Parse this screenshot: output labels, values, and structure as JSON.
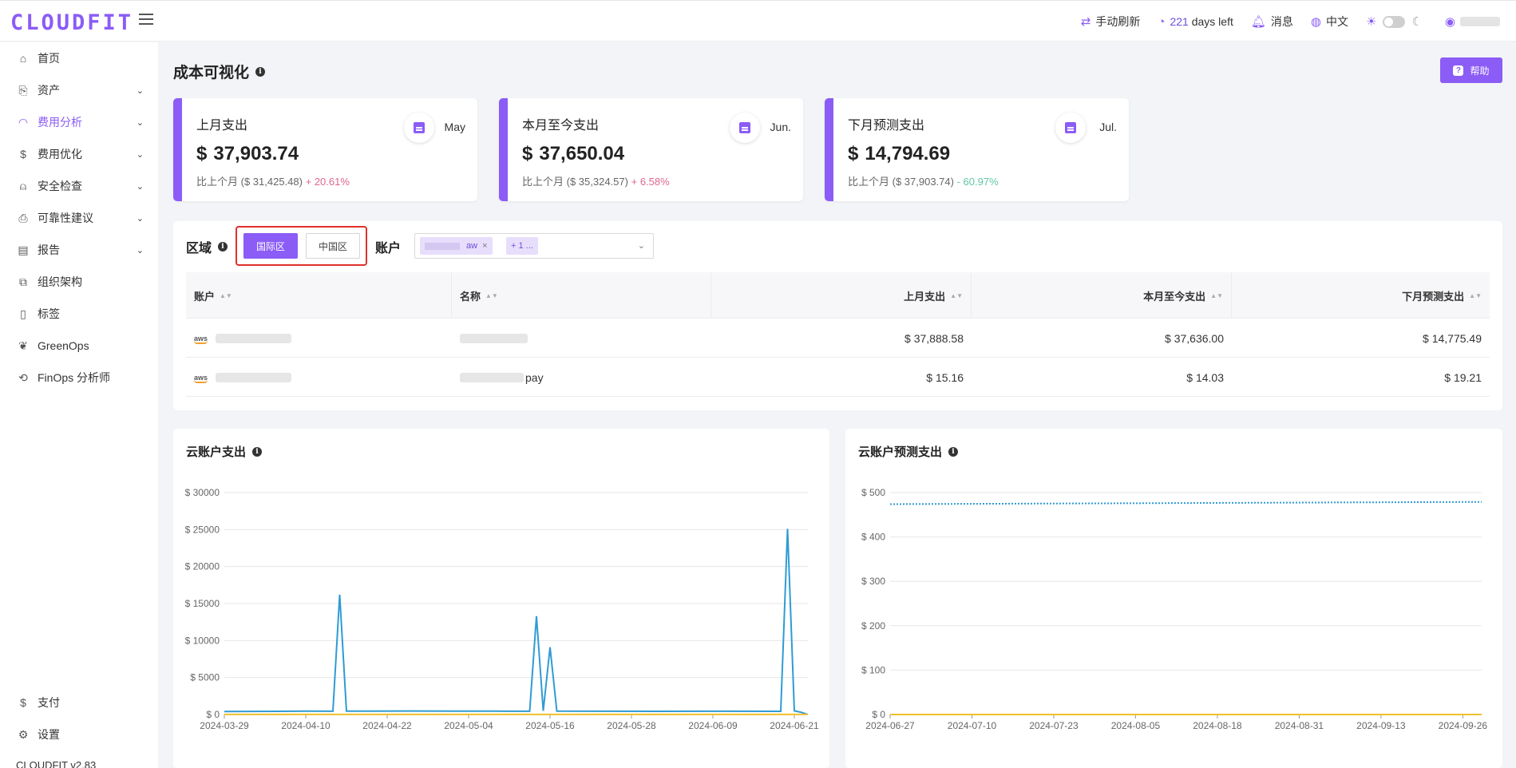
{
  "app": {
    "logo": "CLOUDFIT",
    "version": "CLOUDFIT v2.83"
  },
  "topbar": {
    "refresh_label": "手动刷新",
    "days_value": "221",
    "days_label": "days left",
    "messages_label": "消息",
    "language_label": "中文"
  },
  "sidebar": {
    "items": [
      {
        "label": "首页",
        "icon": "home-icon"
      },
      {
        "label": "资产",
        "icon": "asset-icon"
      },
      {
        "label": "费用分析",
        "icon": "dashboard-icon"
      },
      {
        "label": "费用优化",
        "icon": "dollar-icon"
      },
      {
        "label": "安全检查",
        "icon": "alarm-icon"
      },
      {
        "label": "可靠性建议",
        "icon": "doc-check-icon"
      },
      {
        "label": "报告",
        "icon": "report-icon"
      },
      {
        "label": "组织架构",
        "icon": "org-icon"
      },
      {
        "label": "标签",
        "icon": "tag-icon"
      },
      {
        "label": "GreenOps",
        "icon": "leaf-icon"
      },
      {
        "label": "FinOps 分析师",
        "icon": "analyst-icon"
      }
    ],
    "bottom": [
      {
        "label": "支付",
        "icon": "dollar-icon"
      },
      {
        "label": "设置",
        "icon": "gear-icon"
      }
    ]
  },
  "page": {
    "title": "成本可视化",
    "help_label": "帮助"
  },
  "cards": [
    {
      "label": "上月支出",
      "currency": "$",
      "amount": "37,903.74",
      "month": "May",
      "compare_prefix": "比上个月 (",
      "compare_amount": "$ 31,425.48",
      "compare_suffix": ")",
      "change": "+ 20.61%"
    },
    {
      "label": "本月至今支出",
      "currency": "$",
      "amount": "37,650.04",
      "month": "Jun.",
      "compare_prefix": "比上个月 (",
      "compare_amount": "$ 35,324.57",
      "compare_suffix": ")",
      "change": "+ 6.58%"
    },
    {
      "label": "下月预测支出",
      "currency": "$",
      "amount": "14,794.69",
      "month": "Jul.",
      "compare_prefix": "比上个月 (",
      "compare_amount": "$ 37,903.74",
      "compare_suffix": ")",
      "change": "- 60.97%"
    }
  ],
  "filters": {
    "region_label": "区域",
    "region_intl": "国际区",
    "region_cn": "中国区",
    "account_label": "账户",
    "account_tag_visible": "aw",
    "account_tag_more": "+ 1 ..."
  },
  "table": {
    "headers": [
      "账户",
      "名称",
      "上月支出",
      "本月至今支出",
      "下月预测支出"
    ],
    "rows": [
      {
        "provider": "aws",
        "last_month": "$ 37,888.58",
        "mtd": "$ 37,636.00",
        "forecast": "$ 14,775.49",
        "name_visible": ""
      },
      {
        "provider": "aws",
        "last_month": "$ 15.16",
        "mtd": "$ 14.03",
        "forecast": "$ 19.21",
        "name_visible": "pay"
      }
    ]
  },
  "charts": {
    "left_title": "云账户支出",
    "right_title": "云账户预测支出"
  },
  "chart_data": [
    {
      "type": "line",
      "title": "云账户支出",
      "ylim": [
        0,
        30000
      ],
      "y_ticks": [
        "$ 0",
        "$ 5000",
        "$ 10000",
        "$ 15000",
        "$ 20000",
        "$ 25000",
        "$ 30000"
      ],
      "x_ticks": [
        "2024-03-29",
        "2024-04-10",
        "2024-04-22",
        "2024-05-04",
        "2024-05-16",
        "2024-05-28",
        "2024-06-09",
        "2024-06-21"
      ],
      "x_range": [
        "2024-03-29",
        "2024-06-23"
      ],
      "series": [
        {
          "color": "#2f9bd4",
          "points": [
            [
              "2024-03-29",
              400
            ],
            [
              "2024-04-02",
              420
            ],
            [
              "2024-04-06",
              430
            ],
            [
              "2024-04-10",
              450
            ],
            [
              "2024-04-14",
              440
            ],
            [
              "2024-04-15",
              16200
            ],
            [
              "2024-04-16",
              450
            ],
            [
              "2024-04-20",
              460
            ],
            [
              "2024-04-26",
              470
            ],
            [
              "2024-05-02",
              460
            ],
            [
              "2024-05-08",
              450
            ],
            [
              "2024-05-13",
              440
            ],
            [
              "2024-05-14",
              13300
            ],
            [
              "2024-05-15",
              500
            ],
            [
              "2024-05-16",
              9100
            ],
            [
              "2024-05-17",
              450
            ],
            [
              "2024-05-24",
              440
            ],
            [
              "2024-06-01",
              430
            ],
            [
              "2024-06-10",
              440
            ],
            [
              "2024-06-19",
              430
            ],
            [
              "2024-06-20",
              25100
            ],
            [
              "2024-06-21",
              500
            ],
            [
              "2024-06-22",
              300
            ],
            [
              "2024-06-23",
              0
            ]
          ]
        },
        {
          "color": "#f0c02a",
          "points": [
            [
              "2024-03-29",
              15
            ],
            [
              "2024-06-23",
              15
            ]
          ]
        }
      ]
    },
    {
      "type": "line",
      "title": "云账户预测支出",
      "ylim": [
        0,
        500
      ],
      "y_ticks": [
        "$ 0",
        "$ 100",
        "$ 200",
        "$ 300",
        "$ 400",
        "$ 500"
      ],
      "x_ticks": [
        "2024-06-27",
        "2024-07-10",
        "2024-07-23",
        "2024-08-05",
        "2024-08-18",
        "2024-08-31",
        "2024-09-13",
        "2024-09-26"
      ],
      "x_range": [
        "2024-06-27",
        "2024-09-29"
      ],
      "series": [
        {
          "color": "#2f9bd4",
          "dashed": true,
          "points": [
            [
              "2024-06-27",
              474
            ],
            [
              "2024-09-29",
              479
            ]
          ]
        },
        {
          "color": "#f0c02a",
          "points": [
            [
              "2024-06-27",
              0
            ],
            [
              "2024-09-29",
              0
            ]
          ]
        }
      ]
    }
  ]
}
